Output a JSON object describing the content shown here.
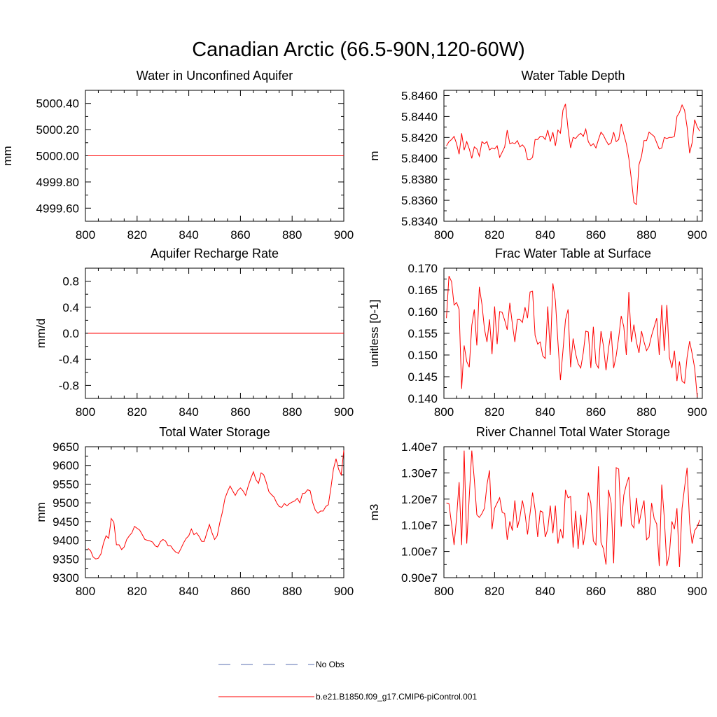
{
  "figure": {
    "title": "Canadian Arctic (66.5-90N,120-60W)"
  },
  "colors": {
    "model": "#ff0000",
    "obs": "#5a6fb0",
    "axis": "#000000"
  },
  "legend": {
    "placement": "bottom-center",
    "entries": [
      {
        "label": "No Obs",
        "style": "dashed",
        "color": "#5a6fb0"
      },
      {
        "label": "b.e21.B1850.f09_g17.CMIP6-piControl.001",
        "style": "solid",
        "color": "#ff0000"
      }
    ]
  },
  "chart_data": [
    {
      "type": "line",
      "title": "Water in Unconfined Aquifer",
      "xlabel": "",
      "ylabel": "mm",
      "xlim": [
        800,
        900
      ],
      "ylim": [
        4999.5,
        5000.5
      ],
      "xticks": [
        800,
        820,
        840,
        860,
        880,
        900
      ],
      "yticks": [
        4999.6,
        4999.8,
        5000.0,
        5000.2,
        5000.4
      ],
      "ytick_labels": [
        "4999.60",
        "4999.80",
        "5000.00",
        "5000.20",
        "5000.40"
      ],
      "series": [
        {
          "x": [
            801,
            900
          ],
          "y": [
            5000.0,
            5000.0
          ]
        }
      ]
    },
    {
      "type": "line",
      "title": "Water Table Depth",
      "xlabel": "",
      "ylabel": "m",
      "xlim": [
        800,
        902
      ],
      "ylim": [
        5.834,
        5.8465
      ],
      "xticks": [
        800,
        820,
        840,
        860,
        880,
        900
      ],
      "yticks": [
        5.834,
        5.836,
        5.838,
        5.84,
        5.842,
        5.844,
        5.846
      ],
      "ytick_labels": [
        "5.8340",
        "5.8360",
        "5.8380",
        "5.8400",
        "5.8420",
        "5.8440",
        "5.8460"
      ],
      "series": [
        {
          "x": [
            801,
            802,
            803,
            804,
            805,
            806,
            807,
            808,
            809,
            810,
            811,
            812,
            813,
            814,
            815,
            816,
            817,
            818,
            819,
            820,
            821,
            822,
            823,
            824,
            825,
            826,
            827,
            828,
            829,
            830,
            831,
            832,
            833,
            834,
            835,
            836,
            837,
            838,
            839,
            840,
            841,
            842,
            843,
            844,
            845,
            846,
            847,
            848,
            849,
            850,
            851,
            852,
            853,
            854,
            855,
            856,
            857,
            858,
            859,
            860,
            861,
            862,
            863,
            864,
            865,
            866,
            867,
            868,
            869,
            870,
            871,
            872,
            873,
            874,
            875,
            876,
            877,
            878,
            879,
            880,
            881,
            882,
            883,
            884,
            885,
            886,
            887,
            888,
            889,
            890,
            891,
            892,
            893,
            894,
            895,
            896,
            897,
            898,
            899,
            900,
            901
          ],
          "y": [
            5.8412,
            5.8416,
            5.8418,
            5.8421,
            5.8414,
            5.8404,
            5.8424,
            5.8408,
            5.8416,
            5.8409,
            5.84,
            5.8411,
            5.8409,
            5.8402,
            5.8416,
            5.8414,
            5.8416,
            5.8408,
            5.841,
            5.8409,
            5.8412,
            5.8401,
            5.8406,
            5.8411,
            5.8427,
            5.8414,
            5.8415,
            5.8414,
            5.8417,
            5.8411,
            5.8413,
            5.841,
            5.8399,
            5.8399,
            5.8401,
            5.8418,
            5.8418,
            5.8421,
            5.8421,
            5.8418,
            5.8427,
            5.8416,
            5.8425,
            5.8412,
            5.8427,
            5.8424,
            5.8446,
            5.8452,
            5.8428,
            5.841,
            5.842,
            5.8419,
            5.8422,
            5.8424,
            5.8421,
            5.8428,
            5.8416,
            5.8412,
            5.8414,
            5.841,
            5.8418,
            5.8425,
            5.8422,
            5.8417,
            5.8413,
            5.8415,
            5.8425,
            5.8416,
            5.8418,
            5.8433,
            5.8423,
            5.8414,
            5.84,
            5.838,
            5.8358,
            5.8356,
            5.8394,
            5.8402,
            5.8417,
            5.8417,
            5.8425,
            5.8423,
            5.8421,
            5.8415,
            5.8409,
            5.841,
            5.842,
            5.8419,
            5.842,
            5.842,
            5.8421,
            5.844,
            5.8444,
            5.8451,
            5.8446,
            5.843,
            5.8405,
            5.8415,
            5.8437,
            5.843,
            5.8426
          ]
        }
      ]
    },
    {
      "type": "line",
      "title": "Aquifer Recharge Rate",
      "xlabel": "",
      "ylabel": "mm/d",
      "xlim": [
        800,
        900
      ],
      "ylim": [
        -1.0,
        1.0
      ],
      "xticks": [
        800,
        820,
        840,
        860,
        880,
        900
      ],
      "yticks": [
        -0.8,
        -0.4,
        0.0,
        0.4,
        0.8
      ],
      "ytick_labels": [
        "-0.8",
        "-0.4",
        "0.0",
        "0.4",
        "0.8"
      ],
      "series": [
        {
          "x": [
            801,
            900
          ],
          "y": [
            0.0,
            0.0
          ]
        }
      ]
    },
    {
      "type": "line",
      "title": "Frac Water Table at Surface",
      "xlabel": "",
      "ylabel": "unitless [0-1]",
      "xlim": [
        800,
        902
      ],
      "ylim": [
        0.14,
        0.17
      ],
      "xticks": [
        800,
        820,
        840,
        860,
        880,
        900
      ],
      "yticks": [
        0.14,
        0.145,
        0.15,
        0.155,
        0.16,
        0.165,
        0.17
      ],
      "ytick_labels": [
        "0.140",
        "0.145",
        "0.150",
        "0.155",
        "0.160",
        "0.165",
        "0.170"
      ],
      "series": [
        {
          "x": [
            801,
            802,
            803,
            804,
            805,
            806,
            807,
            808,
            809,
            810,
            811,
            812,
            813,
            814,
            815,
            816,
            817,
            818,
            819,
            820,
            821,
            822,
            823,
            824,
            825,
            826,
            827,
            828,
            829,
            830,
            831,
            832,
            833,
            834,
            835,
            836,
            837,
            838,
            839,
            840,
            841,
            842,
            843,
            844,
            845,
            846,
            847,
            848,
            849,
            850,
            851,
            852,
            853,
            854,
            855,
            856,
            857,
            858,
            859,
            860,
            861,
            862,
            863,
            864,
            865,
            866,
            867,
            868,
            869,
            870,
            871,
            872,
            873,
            874,
            875,
            876,
            877,
            878,
            879,
            880,
            881,
            882,
            883,
            884,
            885,
            886,
            887,
            888,
            889,
            890,
            891,
            892,
            893,
            894,
            895,
            896,
            897,
            898,
            899,
            900
          ],
          "y": [
            0.1585,
            0.1682,
            0.1669,
            0.1615,
            0.1621,
            0.1605,
            0.1422,
            0.1522,
            0.1485,
            0.1472,
            0.1568,
            0.1605,
            0.1522,
            0.1657,
            0.1617,
            0.156,
            0.153,
            0.1582,
            0.1502,
            0.1612,
            0.1525,
            0.16,
            0.1598,
            0.158,
            0.1558,
            0.162,
            0.1572,
            0.153,
            0.1582,
            0.1582,
            0.1575,
            0.161,
            0.1585,
            0.1645,
            0.1647,
            0.1545,
            0.1525,
            0.153,
            0.1498,
            0.1492,
            0.1612,
            0.15,
            0.1665,
            0.1625,
            0.153,
            0.1442,
            0.151,
            0.1581,
            0.1605,
            0.1472,
            0.1538,
            0.1503,
            0.148,
            0.147,
            0.1505,
            0.1555,
            0.1553,
            0.147,
            0.1565,
            0.148,
            0.147,
            0.1555,
            0.152,
            0.1465,
            0.1515,
            0.1555,
            0.147,
            0.1498,
            0.154,
            0.159,
            0.1565,
            0.15,
            0.1645,
            0.153,
            0.157,
            0.153,
            0.1505,
            0.1555,
            0.153,
            0.151,
            0.152,
            0.1545,
            0.1565,
            0.1585,
            0.15,
            0.1615,
            0.151,
            0.1615,
            0.1495,
            0.147,
            0.151,
            0.144,
            0.1485,
            0.144,
            0.1435,
            0.1495,
            0.1532,
            0.1503,
            0.147,
            0.1403
          ]
        }
      ]
    },
    {
      "type": "line",
      "title": "Total Water Storage",
      "xlabel": "",
      "ylabel": "mm",
      "xlim": [
        800,
        900
      ],
      "ylim": [
        9300,
        9650
      ],
      "xticks": [
        800,
        820,
        840,
        860,
        880,
        900
      ],
      "yticks": [
        9300,
        9350,
        9400,
        9450,
        9500,
        9550,
        9600,
        9650
      ],
      "ytick_labels": [
        "9300",
        "9350",
        "9400",
        "9450",
        "9500",
        "9550",
        "9600",
        "9650"
      ],
      "series": [
        {
          "x": [
            801,
            802,
            803,
            804,
            805,
            806,
            807,
            808,
            809,
            810,
            811,
            812,
            813,
            814,
            815,
            816,
            817,
            818,
            819,
            820,
            821,
            822,
            823,
            824,
            825,
            826,
            827,
            828,
            829,
            830,
            831,
            832,
            833,
            834,
            835,
            836,
            837,
            838,
            839,
            840,
            841,
            842,
            843,
            844,
            845,
            846,
            847,
            848,
            849,
            850,
            851,
            852,
            853,
            854,
            855,
            856,
            857,
            858,
            859,
            860,
            861,
            862,
            863,
            864,
            865,
            866,
            867,
            868,
            869,
            870,
            871,
            872,
            873,
            874,
            875,
            876,
            877,
            878,
            879,
            880,
            881,
            882,
            883,
            884,
            885,
            886,
            887,
            888,
            889,
            890,
            891,
            892,
            893,
            894,
            895,
            896,
            897,
            898,
            899,
            900
          ],
          "y": [
            9378,
            9372,
            9355,
            9350,
            9352,
            9363,
            9392,
            9412,
            9405,
            9458,
            9448,
            9388,
            9388,
            9375,
            9382,
            9402,
            9412,
            9420,
            9437,
            9432,
            9427,
            9415,
            9402,
            9400,
            9398,
            9395,
            9385,
            9382,
            9396,
            9402,
            9398,
            9385,
            9385,
            9375,
            9368,
            9365,
            9378,
            9393,
            9405,
            9412,
            9430,
            9415,
            9420,
            9410,
            9397,
            9397,
            9420,
            9442,
            9420,
            9402,
            9412,
            9447,
            9475,
            9512,
            9530,
            9545,
            9532,
            9520,
            9533,
            9540,
            9532,
            9520,
            9545,
            9565,
            9583,
            9562,
            9552,
            9580,
            9575,
            9555,
            9530,
            9522,
            9515,
            9500,
            9490,
            9488,
            9498,
            9492,
            9498,
            9502,
            9505,
            9512,
            9500,
            9525,
            9526,
            9535,
            9532,
            9500,
            9480,
            9472,
            9478,
            9478,
            9490,
            9495,
            9540,
            9590,
            9618,
            9590,
            9575,
            9640
          ]
        }
      ]
    },
    {
      "type": "line",
      "title": "River Channel Total Water Storage",
      "xlabel": "",
      "ylabel": "m3",
      "xlim": [
        800,
        902
      ],
      "ylim": [
        9000000,
        14000000
      ],
      "xticks": [
        800,
        820,
        840,
        860,
        880,
        900
      ],
      "yticks": [
        9000000,
        10000000,
        11000000,
        12000000,
        13000000,
        14000000
      ],
      "ytick_labels": [
        "0.90e7",
        "1.00e7",
        "1.10e7",
        "1.20e7",
        "1.30e7",
        "1.40e7"
      ],
      "series": [
        {
          "x": [
            801,
            802,
            803,
            804,
            805,
            806,
            807,
            808,
            809,
            810,
            811,
            812,
            813,
            814,
            815,
            816,
            817,
            818,
            819,
            820,
            821,
            822,
            823,
            824,
            825,
            826,
            827,
            828,
            829,
            830,
            831,
            832,
            833,
            834,
            835,
            836,
            837,
            838,
            839,
            840,
            841,
            842,
            843,
            844,
            845,
            846,
            847,
            848,
            849,
            850,
            851,
            852,
            853,
            854,
            855,
            856,
            857,
            858,
            859,
            860,
            861,
            862,
            863,
            864,
            865,
            866,
            867,
            868,
            869,
            870,
            871,
            872,
            873,
            874,
            875,
            876,
            877,
            878,
            879,
            880,
            881,
            882,
            883,
            884,
            885,
            886,
            887,
            888,
            889,
            890,
            891,
            892,
            893,
            894,
            895,
            896,
            897,
            898,
            899,
            900,
            901
          ],
          "y": [
            11850000,
            11820000,
            11050000,
            10250000,
            11300000,
            12650000,
            10250000,
            13850000,
            10300000,
            12100000,
            13850000,
            12750000,
            11400000,
            11300000,
            11450000,
            11650000,
            12550000,
            13100000,
            10850000,
            11650000,
            11850000,
            12050000,
            11500000,
            11450000,
            10450000,
            11150000,
            10800000,
            11950000,
            10900000,
            11300000,
            11950000,
            11450000,
            10650000,
            11450000,
            12250000,
            11600000,
            10550000,
            11550000,
            11500000,
            10550000,
            10850000,
            11750000,
            10700000,
            11750000,
            10300000,
            10850000,
            10500000,
            12350000,
            12050000,
            12100000,
            10150000,
            11550000,
            10100000,
            11400000,
            10250000,
            10850000,
            12250000,
            11850000,
            10400000,
            10250000,
            13250000,
            10350000,
            10100000,
            9500000,
            12350000,
            11850000,
            9550000,
            13200000,
            13150000,
            10950000,
            12150000,
            12550000,
            12850000,
            11050000,
            10900000,
            12050000,
            11050000,
            11550000,
            11950000,
            10450000,
            10550000,
            11850000,
            11250000,
            11050000,
            9450000,
            12550000,
            11300000,
            9450000,
            9900000,
            11150000,
            10850000,
            11650000,
            9400000,
            11650000,
            12450000,
            13200000,
            11100000,
            10300000,
            10800000,
            10950000,
            11200000
          ]
        }
      ]
    }
  ]
}
